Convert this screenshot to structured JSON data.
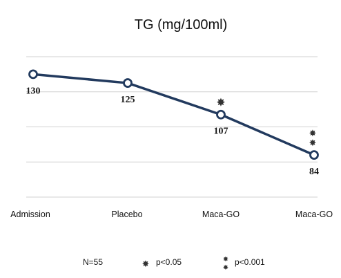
{
  "chart_data": {
    "type": "line",
    "title": "TG (mg/100ml)",
    "categories": [
      "Admission",
      "Placebo",
      "Maca-GO",
      "Maca-GO"
    ],
    "series": [
      {
        "values": [
          130,
          125,
          107,
          84
        ],
        "data_labels": [
          "130",
          "125",
          "107",
          "84"
        ]
      }
    ],
    "ylim": [
      60,
      140
    ],
    "grid": true,
    "significance_marks": [
      "",
      "",
      "*",
      "**"
    ],
    "colors": {
      "line": "#223a5e",
      "marker_fill": "#ffffff",
      "grid": "#d0d0d0"
    }
  },
  "legend": {
    "n_label": "N=55",
    "p005_label": "p<0.05",
    "p0001_label": "p<0.001"
  },
  "icons": {
    "single_star": "asterisk-icon",
    "double_star": "double-asterisk-icon"
  }
}
